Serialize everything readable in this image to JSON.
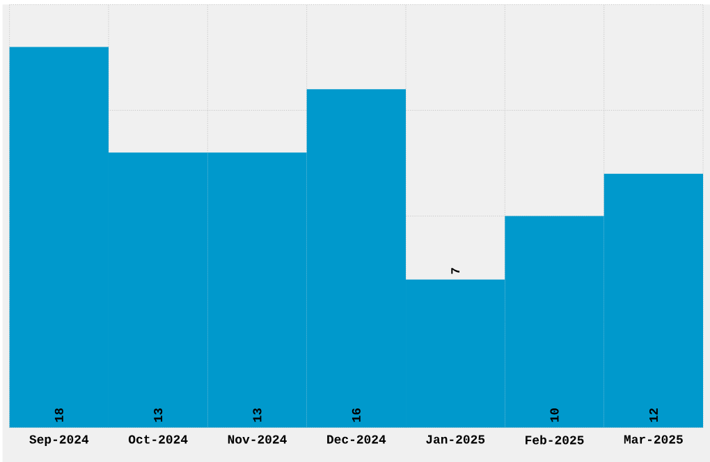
{
  "chart_data": {
    "type": "bar",
    "categories": [
      "Sep-2024",
      "Oct-2024",
      "Nov-2024",
      "Dec-2024",
      "Jan-2025",
      "Feb-2025",
      "Mar-2025"
    ],
    "values": [
      18,
      13,
      13,
      16,
      7,
      10,
      12
    ],
    "color": "#0099cc",
    "ylim": [
      0,
      20
    ],
    "yticks": [
      {
        "value": 0,
        "label": null
      },
      {
        "value": 5,
        "label": null
      },
      {
        "value": 10,
        "label": null
      },
      {
        "value": 15,
        "label": null
      },
      {
        "value": 20,
        "label": null
      }
    ],
    "tick_labels": "x",
    "grid": true,
    "data_labels": true
  }
}
